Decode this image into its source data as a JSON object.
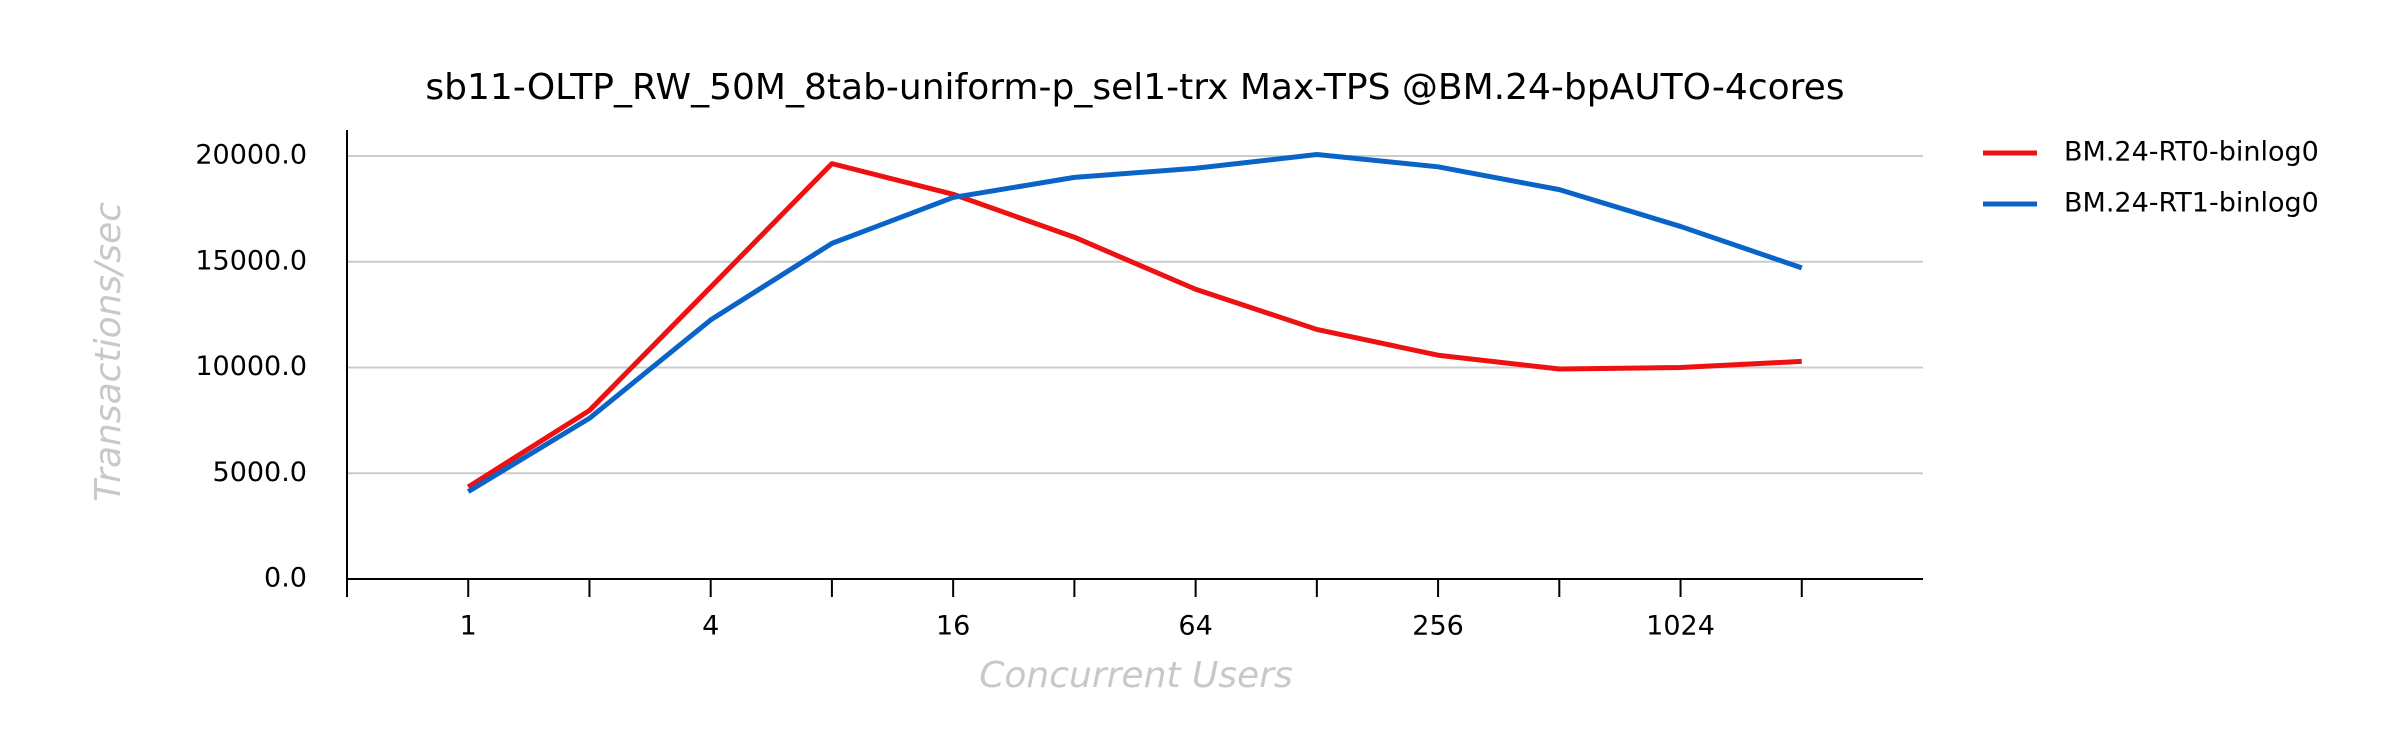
{
  "chart_data": {
    "type": "line",
    "title": "sb11-OLTP_RW_50M_8tab-uniform-p_sel1-trx Max-TPS @BM.24-bpAUTO-4cores",
    "xlabel": "Concurrent Users",
    "ylabel": "Transactions/sec",
    "categories": [
      "1",
      null,
      "4",
      null,
      "16",
      null,
      "64",
      null,
      "256",
      null,
      "1024",
      null
    ],
    "series": [
      {
        "name": "BM.24-RT0-binlog0",
        "color": "#ee1111",
        "values": [
          4350,
          7970,
          13800,
          19640,
          18190,
          16160,
          13700,
          11800,
          10580,
          9930,
          10000,
          10290
        ]
      },
      {
        "name": "BM.24-RT1-binlog0",
        "color": "#0a64c8",
        "values": [
          4130,
          7600,
          12250,
          15870,
          18040,
          18990,
          19420,
          20070,
          19490,
          18410,
          16670,
          14710
        ]
      }
    ],
    "ylim": [
      0,
      21230
    ],
    "yticks": [
      {
        "value": 0,
        "label": "0.0"
      },
      {
        "value": 5000,
        "label": "5000.0"
      },
      {
        "value": 10000,
        "label": "10000.0"
      },
      {
        "value": 15000,
        "label": "15000.0"
      },
      {
        "value": 20000,
        "label": "20000.0"
      }
    ],
    "grid": true,
    "legend": "outside-right"
  }
}
